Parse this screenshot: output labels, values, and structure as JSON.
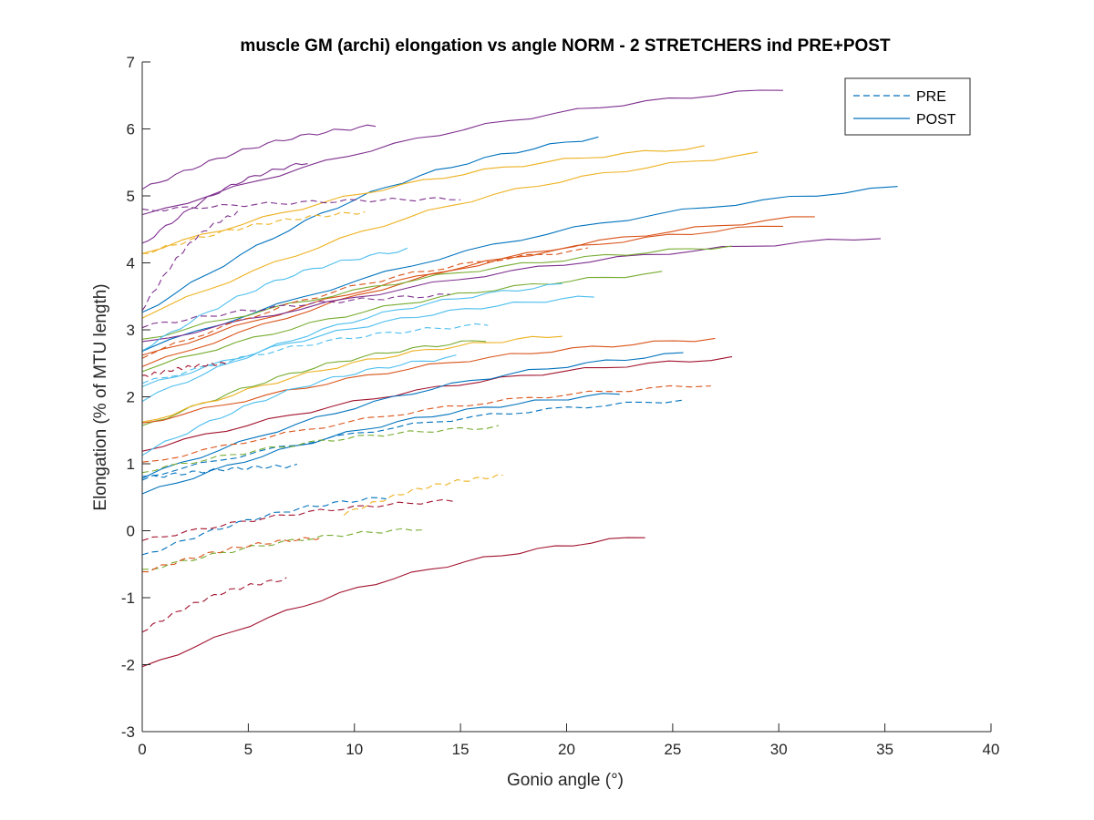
{
  "chart_data": {
    "type": "line",
    "title": "muscle GM (archi) elongation vs angle NORM - 2 STRETCHERS ind PRE+POST",
    "xlabel": "Gonio angle (°)",
    "ylabel": "Elongation (% of MTU length)",
    "xlim": [
      0,
      40
    ],
    "ylim": [
      -3,
      7
    ],
    "xticks": [
      "0",
      "5",
      "10",
      "15",
      "20",
      "25",
      "30",
      "35",
      "40"
    ],
    "yticks": [
      "-3",
      "-2",
      "-1",
      "0",
      "1",
      "2",
      "3",
      "4",
      "5",
      "6",
      "7"
    ],
    "grid": false,
    "legend_position": "top-right",
    "legend": [
      {
        "label": "PRE",
        "style": "dashed",
        "color": "#0072BD"
      },
      {
        "label": "POST",
        "style": "solid",
        "color": "#0072BD"
      }
    ],
    "series": [
      {
        "style": "solid",
        "color": "#7E2F8E",
        "x0": 0,
        "y0": 5.1,
        "x1": 11.0,
        "y1": 6.05
      },
      {
        "style": "solid",
        "color": "#7E2F8E",
        "x0": 0,
        "y0": 4.7,
        "x1": 30.2,
        "y1": 6.6
      },
      {
        "style": "solid",
        "color": "#7E2F8E",
        "x0": 0,
        "y0": 4.27,
        "x1": 7.8,
        "y1": 5.5
      },
      {
        "style": "solid",
        "color": "#0072BD",
        "x0": 0,
        "y0": 3.25,
        "x1": 21.5,
        "y1": 5.88
      },
      {
        "style": "solid",
        "color": "#EDB120",
        "x0": 0,
        "y0": 4.15,
        "x1": 26.5,
        "y1": 5.73
      },
      {
        "style": "solid",
        "color": "#EDB120",
        "x0": 0,
        "y0": 3.2,
        "x1": 29.0,
        "y1": 5.63
      },
      {
        "style": "solid",
        "color": "#0072BD",
        "x0": 0,
        "y0": 2.7,
        "x1": 35.6,
        "y1": 5.13
      },
      {
        "style": "solid",
        "color": "#D95319",
        "x0": 0,
        "y0": 2.45,
        "x1": 31.7,
        "y1": 4.7
      },
      {
        "style": "solid",
        "color": "#D95319",
        "x0": 0,
        "y0": 2.6,
        "x1": 30.2,
        "y1": 4.57
      },
      {
        "style": "solid",
        "color": "#7E2F8E",
        "x0": 0,
        "y0": 2.8,
        "x1": 34.8,
        "y1": 4.38
      },
      {
        "style": "solid",
        "color": "#77AC30",
        "x0": 0,
        "y0": 2.85,
        "x1": 27.8,
        "y1": 4.25
      },
      {
        "style": "solid",
        "color": "#4DBEEE",
        "x0": 0,
        "y0": 2.7,
        "x1": 12.5,
        "y1": 4.2
      },
      {
        "style": "solid",
        "color": "#77AC30",
        "x0": 0,
        "y0": 2.4,
        "x1": 24.5,
        "y1": 3.85
      },
      {
        "style": "solid",
        "color": "#4DBEEE",
        "x0": 0,
        "y0": 1.95,
        "x1": 19.8,
        "y1": 3.68
      },
      {
        "style": "solid",
        "color": "#4DBEEE",
        "x0": 0,
        "y0": 2.15,
        "x1": 21.3,
        "y1": 3.5
      },
      {
        "style": "solid",
        "color": "#77AC30",
        "x0": 0,
        "y0": 1.55,
        "x1": 16.2,
        "y1": 2.85
      },
      {
        "style": "solid",
        "color": "#EDB120",
        "x0": 0,
        "y0": 1.6,
        "x1": 19.8,
        "y1": 2.92
      },
      {
        "style": "solid",
        "color": "#D95319",
        "x0": 0,
        "y0": 1.6,
        "x1": 27.0,
        "y1": 2.87
      },
      {
        "style": "solid",
        "color": "#A2142F",
        "x0": 0,
        "y0": 1.2,
        "x1": 27.8,
        "y1": 2.58
      },
      {
        "style": "solid",
        "color": "#4DBEEE",
        "x0": 0,
        "y0": 1.15,
        "x1": 14.8,
        "y1": 2.6
      },
      {
        "style": "solid",
        "color": "#0072BD",
        "x0": 0,
        "y0": 0.8,
        "x1": 25.5,
        "y1": 2.65
      },
      {
        "style": "solid",
        "color": "#0072BD",
        "x0": 0,
        "y0": 0.55,
        "x1": 22.5,
        "y1": 2.05
      },
      {
        "style": "solid",
        "color": "#A2142F",
        "x0": 0,
        "y0": -2.05,
        "x1": 23.7,
        "y1": -0.08
      },
      {
        "style": "dashed",
        "color": "#7E2F8E",
        "x0": 0,
        "y0": 4.78,
        "x1": 15.0,
        "y1": 4.96
      },
      {
        "style": "dashed",
        "color": "#EDB120",
        "x0": 0,
        "y0": 4.13,
        "x1": 10.5,
        "y1": 4.76
      },
      {
        "style": "dashed",
        "color": "#7E2F8E",
        "x0": 0,
        "y0": 3.3,
        "x1": 4.5,
        "y1": 4.75
      },
      {
        "style": "dashed",
        "color": "#D95319",
        "x0": 0,
        "y0": 2.6,
        "x1": 21.0,
        "y1": 4.2
      },
      {
        "style": "dashed",
        "color": "#7E2F8E",
        "x0": 0,
        "y0": 3.05,
        "x1": 14.5,
        "y1": 3.52
      },
      {
        "style": "dashed",
        "color": "#4DBEEE",
        "x0": 0,
        "y0": 2.2,
        "x1": 16.3,
        "y1": 3.08
      },
      {
        "style": "dashed",
        "color": "#A2142F",
        "x0": 0,
        "y0": 2.3,
        "x1": 4.0,
        "y1": 2.5
      },
      {
        "style": "dashed",
        "color": "#D95319",
        "x0": 0,
        "y0": 1.0,
        "x1": 26.8,
        "y1": 2.18
      },
      {
        "style": "dashed",
        "color": "#0072BD",
        "x0": 0,
        "y0": 0.8,
        "x1": 25.5,
        "y1": 1.95
      },
      {
        "style": "dashed",
        "color": "#77AC30",
        "x0": 0,
        "y0": 0.88,
        "x1": 16.8,
        "y1": 1.55
      },
      {
        "style": "dashed",
        "color": "#0072BD",
        "x0": 0,
        "y0": 0.78,
        "x1": 7.3,
        "y1": 0.97
      },
      {
        "style": "dashed",
        "color": "#EDB120",
        "x0": 9.5,
        "y0": 0.25,
        "x1": 17.0,
        "y1": 0.82
      },
      {
        "style": "dashed",
        "color": "#A2142F",
        "x0": 0,
        "y0": -0.15,
        "x1": 14.7,
        "y1": 0.45
      },
      {
        "style": "dashed",
        "color": "#0072BD",
        "x0": 0,
        "y0": -0.38,
        "x1": 11.5,
        "y1": 0.5
      },
      {
        "style": "dashed",
        "color": "#77AC30",
        "x0": 0,
        "y0": -0.6,
        "x1": 13.2,
        "y1": 0.03
      },
      {
        "style": "dashed",
        "color": "#D95319",
        "x0": 0,
        "y0": -0.62,
        "x1": 8.5,
        "y1": -0.1
      },
      {
        "style": "dashed",
        "color": "#A2142F",
        "x0": 0,
        "y0": -1.5,
        "x1": 6.8,
        "y1": -0.72
      }
    ]
  }
}
